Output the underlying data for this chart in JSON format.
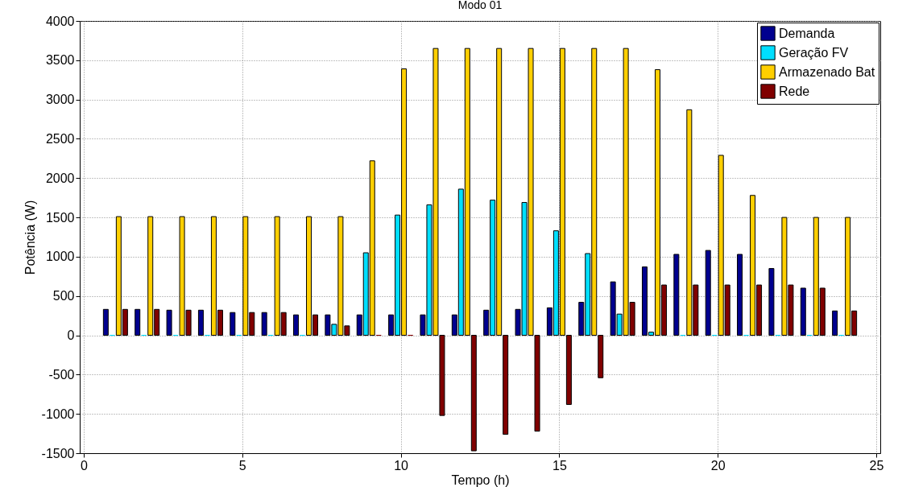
{
  "chart_data": {
    "type": "bar",
    "title": "Modo 01",
    "xlabel": "Tempo (h)",
    "ylabel": "Potência (W)",
    "x": [
      1,
      2,
      3,
      4,
      5,
      6,
      7,
      8,
      9,
      10,
      11,
      12,
      13,
      14,
      15,
      16,
      17,
      18,
      19,
      20,
      21,
      22,
      23,
      24
    ],
    "series": [
      {
        "name": "Demanda",
        "color": "#00008f",
        "values": [
          330,
          330,
          320,
          320,
          290,
          290,
          260,
          260,
          260,
          260,
          260,
          260,
          320,
          330,
          350,
          420,
          680,
          870,
          1030,
          1080,
          1030,
          850,
          600,
          310
        ]
      },
      {
        "name": "Geração FV",
        "color": "#00dfff",
        "values": [
          0,
          0,
          0,
          0,
          0,
          0,
          0,
          140,
          1050,
          1530,
          1660,
          1860,
          1720,
          1690,
          1330,
          1040,
          270,
          40,
          0,
          0,
          0,
          0,
          0,
          0
        ]
      },
      {
        "name": "Armazenado Bat",
        "color": "#ffcf00",
        "values": [
          1510,
          1510,
          1510,
          1510,
          1510,
          1510,
          1510,
          1510,
          2220,
          3390,
          3650,
          3650,
          3650,
          3650,
          3650,
          3650,
          3650,
          3380,
          2870,
          2290,
          1780,
          1500,
          1500,
          1500
        ]
      },
      {
        "name": "Rede",
        "color": "#800000",
        "values": [
          330,
          330,
          320,
          320,
          290,
          290,
          260,
          120,
          0,
          0,
          -1020,
          -1470,
          -1260,
          -1220,
          -880,
          -540,
          420,
          640,
          640,
          640,
          640,
          640,
          600,
          310
        ]
      }
    ],
    "xlim": [
      0,
      25
    ],
    "xticks": [
      0,
      5,
      10,
      15,
      20,
      25
    ],
    "ylim": [
      -1500,
      4000
    ],
    "yticks": [
      -1500,
      -1000,
      -500,
      0,
      500,
      1000,
      1500,
      2000,
      2500,
      3000,
      3500,
      4000
    ],
    "grid": true,
    "legend": "top right"
  }
}
